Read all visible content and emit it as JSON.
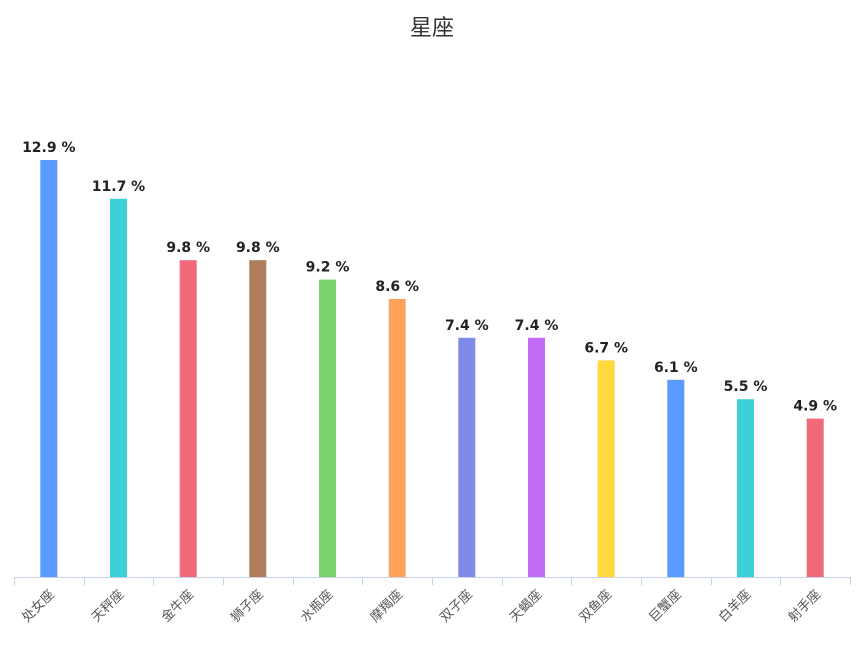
{
  "chart_data": {
    "type": "bar",
    "title": "星座",
    "categories": [
      "处女座",
      "天秤座",
      "金牛座",
      "狮子座",
      "水瓶座",
      "摩羯座",
      "双子座",
      "天蝎座",
      "双鱼座",
      "巨蟹座",
      "白羊座",
      "射手座"
    ],
    "series": [
      {
        "values": [
          12.9,
          11.7,
          9.8,
          9.8,
          9.2,
          8.6,
          7.4,
          7.4,
          6.7,
          6.1,
          5.5,
          4.9
        ],
        "labels": [
          "12.9 %",
          "11.7 %",
          "9.8 %",
          "9.8 %",
          "9.2 %",
          "8.6 %",
          "7.4 %",
          "7.4 %",
          "6.7 %",
          "6.1 %",
          "5.5 %",
          "4.9 %"
        ]
      }
    ],
    "colors": [
      "#5b9bff",
      "#3ed0d8",
      "#f06a7a",
      "#b07d5a",
      "#7ad36f",
      "#ffa25c",
      "#7f8be6",
      "#c16cf5",
      "#ffd93d",
      "#5b9bff",
      "#3ed0d8",
      "#f06a7a"
    ],
    "xlabel": "",
    "ylabel": "",
    "ylim": [
      0,
      12.9
    ],
    "grid": false,
    "legend": "none"
  }
}
